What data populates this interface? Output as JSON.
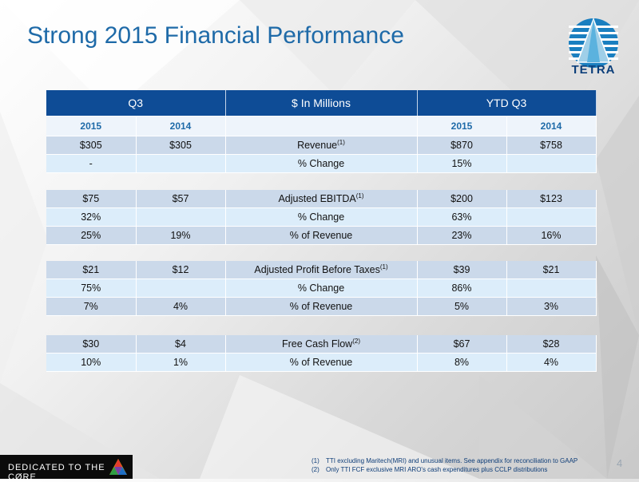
{
  "title": "Strong 2015 Financial Performance",
  "logo": {
    "text": "TETRA"
  },
  "header": {
    "left": "Q3",
    "middle": "$ In Millions",
    "right": "YTD Q3"
  },
  "years": [
    "2015",
    "2014",
    "",
    "2015",
    "2014"
  ],
  "sections": [
    {
      "rows": [
        {
          "cells": [
            "$305",
            "$305",
            "Revenue",
            "$870",
            "$758"
          ],
          "sup": "(1)"
        },
        {
          "cells": [
            "-",
            "",
            "% Change",
            "15%",
            ""
          ],
          "sup": ""
        }
      ]
    },
    {
      "rows": [
        {
          "cells": [
            "$75",
            "$57",
            "Adjusted EBITDA",
            "$200",
            "$123"
          ],
          "sup": "(1)"
        },
        {
          "cells": [
            "32%",
            "",
            "% Change",
            "63%",
            ""
          ],
          "sup": ""
        },
        {
          "cells": [
            "25%",
            "19%",
            "% of Revenue",
            "23%",
            "16%"
          ],
          "sup": ""
        }
      ]
    },
    {
      "rows": [
        {
          "cells": [
            "$21",
            "$12",
            "Adjusted Profit Before Taxes",
            "$39",
            "$21"
          ],
          "sup": "(1)"
        },
        {
          "cells": [
            "75%",
            "",
            "% Change",
            "86%",
            ""
          ],
          "sup": ""
        },
        {
          "cells": [
            "7%",
            "4%",
            "% of Revenue",
            "5%",
            "3%"
          ],
          "sup": ""
        }
      ]
    },
    {
      "rows": [
        {
          "cells": [
            "$30",
            "$4",
            "Free Cash Flow",
            "$67",
            "$28"
          ],
          "sup": "(2)"
        },
        {
          "cells": [
            "10%",
            "1%",
            "% of Revenue",
            "8%",
            "4%"
          ],
          "sup": ""
        }
      ]
    }
  ],
  "footer": {
    "tagline": "DEDICATED TO THE CØRE",
    "notes": [
      {
        "num": "(1)",
        "text": "TTI excluding Maritech(MRI) and unusual items. See appendix for reconciliation to GAAP"
      },
      {
        "num": "(2)",
        "text": "Only TTI FCF exclusive MRI ARO's cash expenditures plus CCLP distributions"
      }
    ],
    "page": "4"
  },
  "colors": {
    "title": "#1e6aa8",
    "header": "#0e4c96",
    "row_dark": "#cbd9ea",
    "row_light": "#dcedfa"
  }
}
